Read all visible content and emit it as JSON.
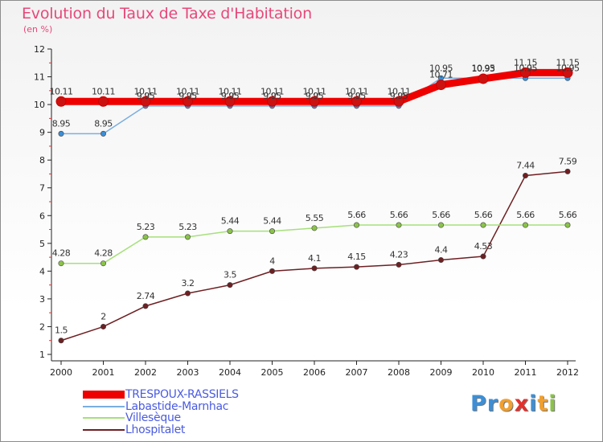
{
  "title": "Evolution du Taux de Taxe d'Habitation",
  "unit_label": "(en %)",
  "brand": {
    "text": "Proxiti",
    "letters": [
      {
        "ch": "P",
        "color": "#3c8fd6"
      },
      {
        "ch": "r",
        "color": "#3c8fd6"
      },
      {
        "ch": "o",
        "color": "#f0a030"
      },
      {
        "ch": "x",
        "color": "#e2312d"
      },
      {
        "ch": "i",
        "color": "#3c8fd6"
      },
      {
        "ch": "t",
        "color": "#f0a030"
      },
      {
        "ch": "i",
        "color": "#8bc34a"
      }
    ]
  },
  "chart_data": {
    "type": "line",
    "title": "Evolution du Taux de Taxe d'Habitation",
    "ylabel": "(en %)",
    "xlabel": "",
    "ylim": [
      1,
      12
    ],
    "yticks": [
      1,
      2,
      3,
      4,
      5,
      6,
      7,
      8,
      9,
      10,
      11,
      12
    ],
    "grid": false,
    "legend_position": "bottom-left",
    "categories": [
      "2000",
      "2001",
      "2002",
      "2003",
      "2004",
      "2005",
      "2006",
      "2007",
      "2008",
      "2009",
      "2010",
      "2011",
      "2012"
    ],
    "series": [
      {
        "name": "TRESPOUX-RASSIELS",
        "color": "#ee0000",
        "marker_color": "#cc1111",
        "values": [
          10.11,
          10.11,
          10.11,
          10.11,
          10.11,
          10.11,
          10.11,
          10.11,
          10.11,
          10.71,
          10.93,
          11.15,
          11.15
        ],
        "labels": [
          "10.11",
          "10.11",
          "10.11",
          "10.11",
          "10.11",
          "10.11",
          "10.11",
          "10.11",
          "10.11",
          "10.71",
          "10.93",
          "11.15",
          "11.15"
        ]
      },
      {
        "name": "Labastide-Marnhac",
        "color": "#7aaee0",
        "marker_color": "#3c8fd6",
        "values": [
          8.95,
          8.95,
          9.95,
          9.95,
          9.95,
          9.95,
          9.95,
          9.95,
          9.95,
          10.95,
          10.95,
          10.95,
          10.95
        ],
        "labels": [
          "8.95",
          "8.95",
          "9.95",
          "9.95",
          "9.95",
          "9.95",
          "9.95",
          "9.95",
          "9.95",
          "10.95",
          "10.95",
          "10.95",
          "10.95"
        ]
      },
      {
        "name": "Villesèque",
        "color": "#a6e07a",
        "marker_color": "#8bc34a",
        "values": [
          4.28,
          4.28,
          5.23,
          5.23,
          5.44,
          5.44,
          5.55,
          5.66,
          5.66,
          5.66,
          5.66,
          5.66,
          5.66
        ],
        "labels": [
          "4.28",
          "4.28",
          "5.23",
          "5.23",
          "5.44",
          "5.44",
          "5.55",
          "5.66",
          "5.66",
          "5.66",
          "5.66",
          "5.66",
          "5.66"
        ]
      },
      {
        "name": "Lhospitalet",
        "color": "#6e1f22",
        "marker_color": "#6e1f22",
        "values": [
          1.5,
          2,
          2.74,
          3.2,
          3.5,
          4,
          4.1,
          4.15,
          4.23,
          4.4,
          4.53,
          7.44,
          7.59
        ],
        "labels": [
          "1.5",
          "2",
          "2.74",
          "3.2",
          "3.5",
          "4",
          "4.1",
          "4.15",
          "4.23",
          "4.4",
          "4.53",
          "7.44",
          "7.59"
        ]
      }
    ]
  }
}
